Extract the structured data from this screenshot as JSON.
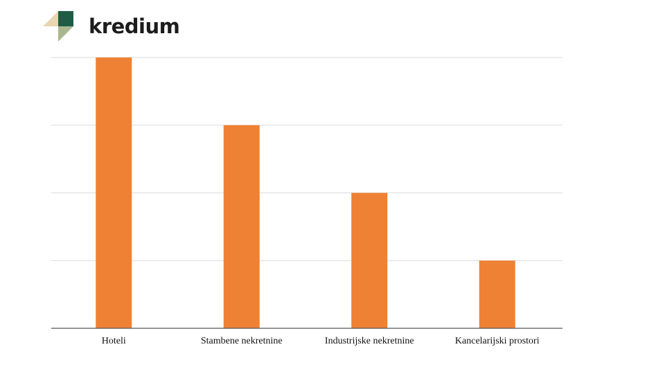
{
  "brand": {
    "name": "kredium",
    "colors": {
      "dark_green": "#1f5c45",
      "sage": "#a9b88f",
      "tan": "#e9d6b0"
    }
  },
  "chart_data": {
    "type": "bar",
    "categories": [
      "Hoteli",
      "Stambene nekretnine",
      "Industrijske nekretnine",
      "Kancelarijski prostori"
    ],
    "values": [
      4,
      3,
      2,
      1
    ],
    "title": "",
    "xlabel": "",
    "ylabel": "",
    "ylim": [
      0,
      4
    ],
    "grid": true,
    "bar_color": "#ee8133",
    "grid_color": "#dadada",
    "axis_color": "#555555"
  }
}
